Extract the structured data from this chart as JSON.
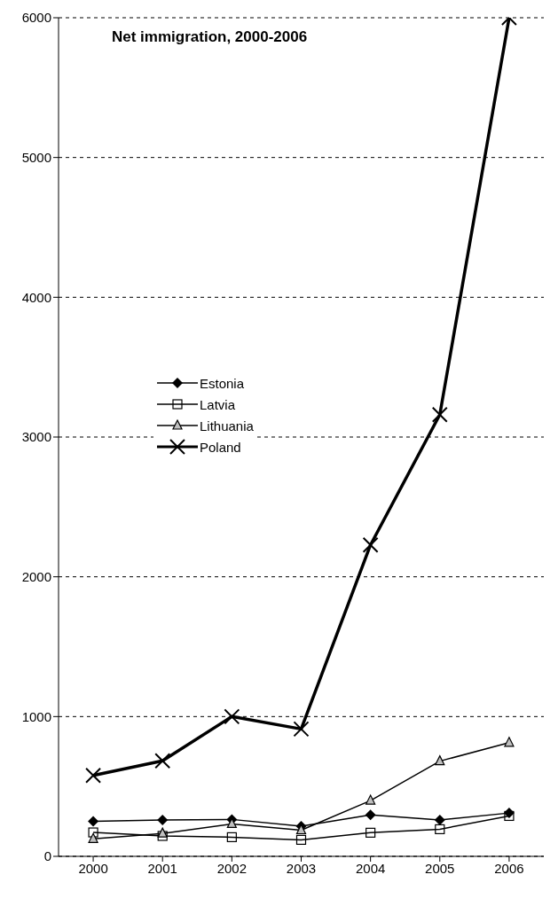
{
  "chart_data": {
    "type": "line",
    "title": "Net immigration, 2000-2006",
    "categories": [
      "2000",
      "2001",
      "2002",
      "2003",
      "2004",
      "2005",
      "2006"
    ],
    "series": [
      {
        "name": "Estonia",
        "color": "#000000",
        "marker": "diamond",
        "values": [
          250,
          260,
          264,
          216,
          296,
          260,
          310
        ]
      },
      {
        "name": "Latvia",
        "color": "#000000",
        "marker": "square",
        "values": [
          171,
          146,
          137,
          118,
          169,
          194,
          289
        ]
      },
      {
        "name": "Lithuania",
        "color": "#000000",
        "marker": "triangle",
        "values": [
          125,
          164,
          232,
          187,
          399,
          681,
          813
        ]
      },
      {
        "name": "Poland",
        "color": "#000000",
        "marker": "cross",
        "values": [
          579,
          683,
          1000,
          911,
          2228,
          3160,
          6000
        ]
      }
    ],
    "ylim": [
      0,
      6000
    ],
    "yticks": [
      0,
      1000,
      2000,
      3000,
      4000,
      5000,
      6000
    ],
    "grid": "y",
    "legend": "left"
  }
}
